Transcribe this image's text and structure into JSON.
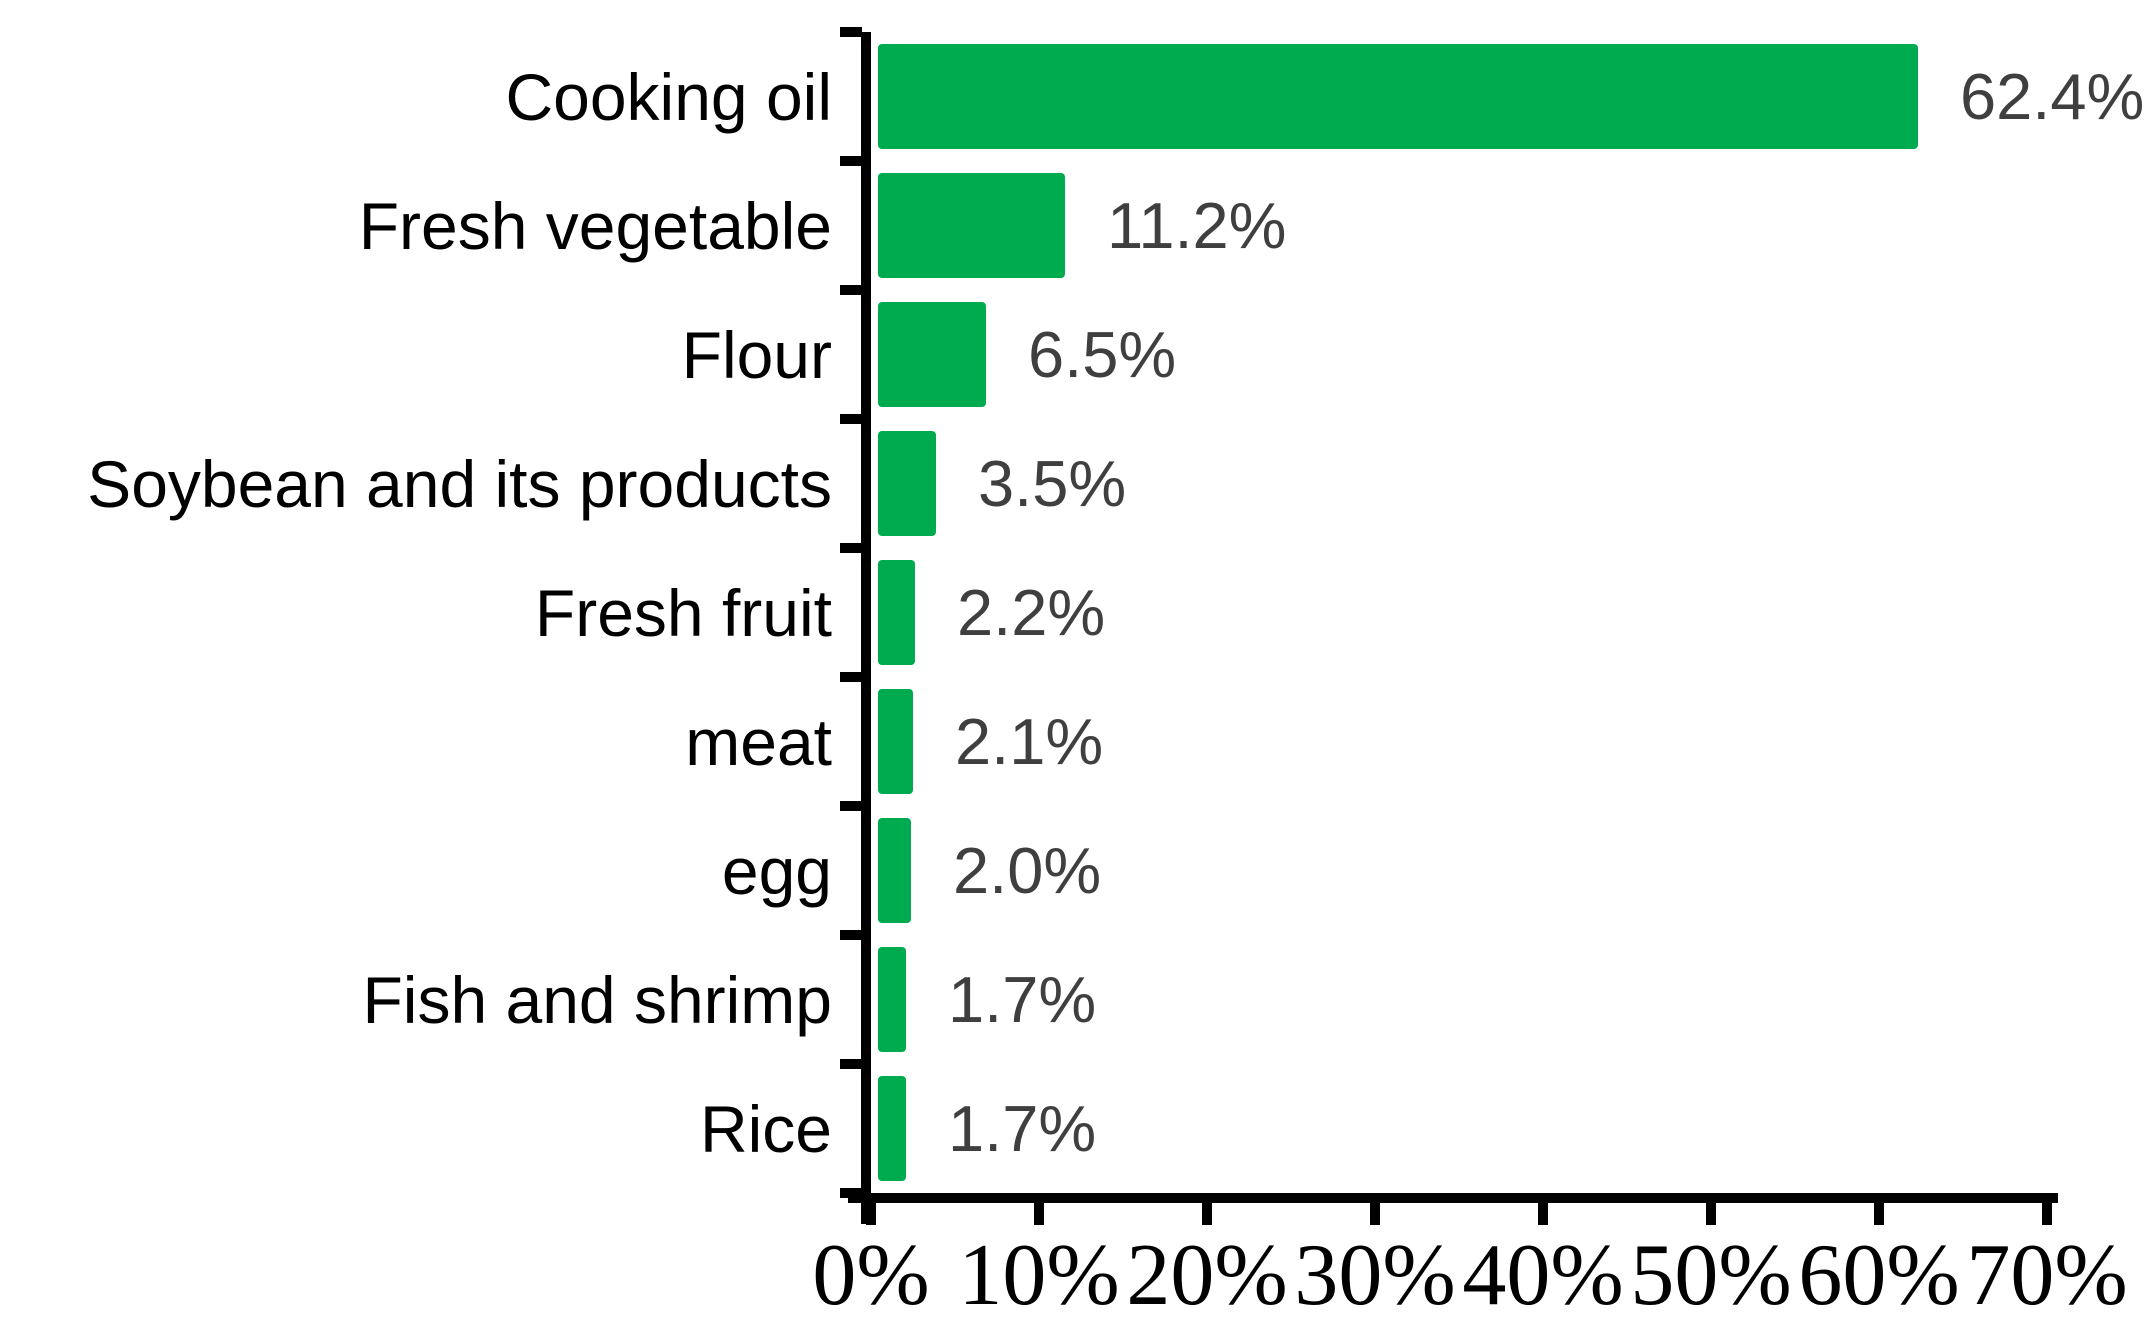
{
  "chart_data": {
    "type": "bar",
    "orientation": "horizontal",
    "title": "",
    "xlabel": "",
    "ylabel": "",
    "categories": [
      "Cooking oil",
      "Fresh vegetable",
      "Flour",
      "Soybean and its products",
      "Fresh fruit",
      "meat",
      "egg",
      "Fish and shrimp",
      "Rice"
    ],
    "values": [
      62.4,
      11.2,
      6.5,
      3.5,
      2.2,
      2.1,
      2.0,
      1.7,
      1.7
    ],
    "value_labels": [
      "62.4%",
      "11.2%",
      "6.5%",
      "3.5%",
      "2.2%",
      "2.1%",
      "2.0%",
      "1.7%",
      "1.7%"
    ],
    "x_ticks": [
      "0%",
      "10%",
      "20%",
      "30%",
      "40%",
      "50%",
      "60%",
      "70%"
    ],
    "x_tick_values": [
      0,
      10,
      20,
      30,
      40,
      50,
      60,
      70
    ],
    "xlim": [
      0,
      70
    ],
    "grid": false,
    "legend": false,
    "colors": {
      "bar": "#00AB50",
      "value_label": "#3F3F3F",
      "category_label": "#000000",
      "axis": "#000000",
      "background": "#FFFFFF"
    }
  }
}
